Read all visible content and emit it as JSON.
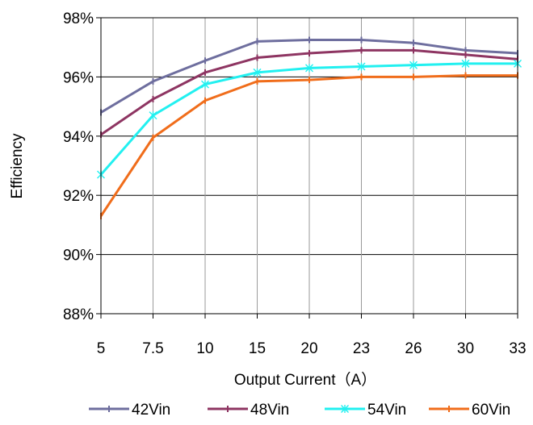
{
  "chart_data": {
    "type": "line",
    "x": [
      "5",
      "7.5",
      "10",
      "15",
      "20",
      "23",
      "26",
      "30",
      "33"
    ],
    "xlabel": "Output Current（A）",
    "ylabel": "Efficiency",
    "ylim": [
      88,
      98
    ],
    "yticks": [
      88,
      90,
      92,
      94,
      96,
      98
    ],
    "ytick_labels": [
      "88%",
      "90%",
      "92%",
      "94%",
      "96%",
      "98%"
    ],
    "grid": true,
    "legend_position": "bottom",
    "series": [
      {
        "name": "42Vin",
        "color": "#6E6E9E",
        "marker": "tick",
        "values": [
          94.8,
          95.85,
          96.55,
          97.2,
          97.25,
          97.25,
          97.15,
          96.9,
          96.8
        ]
      },
      {
        "name": "48Vin",
        "color": "#8E3562",
        "marker": "tick",
        "values": [
          94.05,
          95.25,
          96.15,
          96.65,
          96.8,
          96.9,
          96.9,
          96.75,
          96.6
        ]
      },
      {
        "name": "54Vin",
        "color": "#22F0F0",
        "marker": "star",
        "values": [
          92.7,
          94.7,
          95.75,
          96.15,
          96.3,
          96.35,
          96.4,
          96.45,
          96.45
        ]
      },
      {
        "name": "60Vin",
        "color": "#F06D1B",
        "marker": "tick",
        "values": [
          91.3,
          93.95,
          95.2,
          95.85,
          95.9,
          96.0,
          96.0,
          96.05,
          96.05
        ]
      }
    ]
  }
}
